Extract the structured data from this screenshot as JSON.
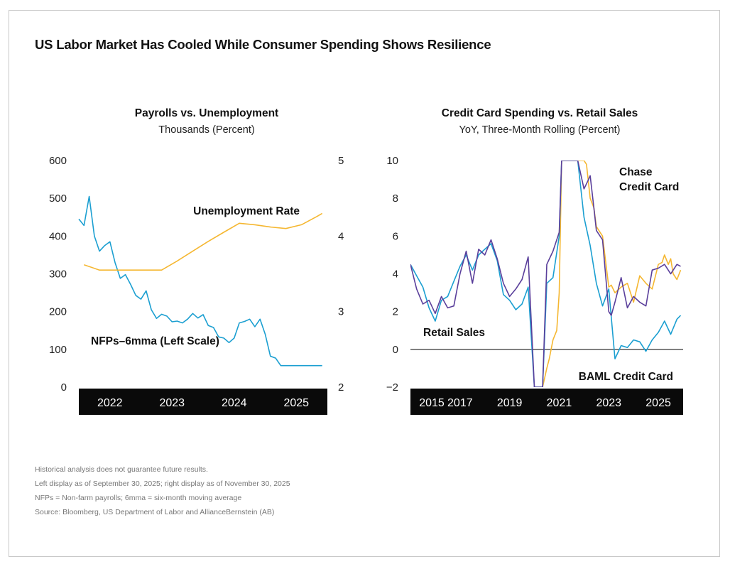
{
  "title": "US Labor Market Has Cooled While Consumer Spending Shows Resilience",
  "left_panel": {
    "title": "Payrolls vs. Unemployment",
    "subtitle": "Thousands (Percent)"
  },
  "right_panel": {
    "title": "Credit Card Spending vs. Retail Sales",
    "subtitle": "YoY, Three-Month Rolling (Percent)"
  },
  "colors": {
    "nfp": "#1b9fd1",
    "unemployment": "#f5b731",
    "retail": "#1b9fd1",
    "chase": "#5a3f9b",
    "baml": "#f5b731",
    "axis_band": "#0a0a0a"
  },
  "footnotes": [
    "Historical analysis does not guarantee future results.",
    "Left display as of September 30, 2025; right display as of November 30, 2025",
    "NFPs = Non-farm payrolls; 6mma = six-month moving average",
    "Source: Bloomberg, US Department of Labor and AllianceBernstein (AB)"
  ],
  "chart_data": [
    {
      "type": "line",
      "title": "Payrolls vs. Unemployment",
      "subtitle": "Thousands (Percent)",
      "x_range": [
        2021.75,
        2025.75
      ],
      "x_ticks": [
        {
          "value": 2022.25,
          "label": "2022"
        },
        {
          "value": 2023.25,
          "label": "2023"
        },
        {
          "value": 2024.25,
          "label": "2024"
        },
        {
          "value": 2025.25,
          "label": "2025"
        }
      ],
      "y_left": {
        "range": [
          0,
          600
        ],
        "ticks": [
          "0",
          "100",
          "200",
          "300",
          "400",
          "500",
          "600"
        ]
      },
      "y_right": {
        "range": [
          2,
          5
        ],
        "ticks": [
          "2",
          "3",
          "4",
          "5"
        ]
      },
      "series": [
        {
          "name": "NFPs–6mma (Left Scale)",
          "axis": "left",
          "color_key": "nfp",
          "x": [
            2021.75,
            2021.833,
            2021.917,
            2022.0,
            2022.083,
            2022.167,
            2022.25,
            2022.333,
            2022.417,
            2022.5,
            2022.583,
            2022.667,
            2022.75,
            2022.833,
            2022.917,
            2023.0,
            2023.083,
            2023.167,
            2023.25,
            2023.333,
            2023.417,
            2023.5,
            2023.583,
            2023.667,
            2023.75,
            2023.833,
            2023.917,
            2024.0,
            2024.083,
            2024.167,
            2024.25,
            2024.333,
            2024.417,
            2024.5,
            2024.583,
            2024.667,
            2024.75,
            2024.833,
            2024.917,
            2025.0,
            2025.083,
            2025.167,
            2025.25,
            2025.333,
            2025.417,
            2025.5,
            2025.583,
            2025.667
          ],
          "values": [
            445,
            428,
            505,
            400,
            360,
            375,
            385,
            330,
            288,
            298,
            272,
            243,
            233,
            255,
            205,
            182,
            193,
            188,
            173,
            175,
            170,
            180,
            195,
            183,
            192,
            163,
            158,
            133,
            130,
            118,
            130,
            170,
            174,
            180,
            160,
            180,
            140,
            82,
            77,
            57,
            57,
            57,
            57,
            57,
            57,
            57,
            57,
            57
          ]
        },
        {
          "name": "Unemployment Rate",
          "axis": "right",
          "color_key": "unemployment",
          "x": [
            2021.833,
            2022.083,
            2022.333,
            2022.583,
            2022.833,
            2023.083,
            2023.333,
            2023.583,
            2023.833,
            2024.083,
            2024.333,
            2024.583,
            2024.833,
            2025.083,
            2025.333,
            2025.583,
            2025.667
          ],
          "values": [
            3.62,
            3.55,
            3.55,
            3.55,
            3.55,
            3.55,
            3.67,
            3.8,
            3.93,
            4.05,
            4.17,
            4.15,
            4.12,
            4.1,
            4.15,
            4.26,
            4.3
          ]
        }
      ],
      "annotations": [
        "Unemployment Rate",
        "NFPs–6mma (Left Scale)"
      ]
    },
    {
      "type": "line",
      "title": "Credit Card Spending vs. Retail Sales",
      "subtitle": "YoY, Three-Month Rolling (Percent)",
      "x_range": [
        2015.0,
        2026.0
      ],
      "x_ticks": [
        {
          "value": 2015.0,
          "label": "2015"
        },
        {
          "value": 2017.0,
          "label": "2017"
        },
        {
          "value": 2019.0,
          "label": "2019"
        },
        {
          "value": 2021.0,
          "label": "2021"
        },
        {
          "value": 2023.0,
          "label": "2023"
        },
        {
          "value": 2025.0,
          "label": "2025"
        }
      ],
      "y": {
        "range": [
          -2,
          10
        ],
        "ticks": [
          "−2",
          "0",
          "2",
          "4",
          "6",
          "8",
          "10"
        ]
      },
      "series": [
        {
          "name": "Retail Sales",
          "color_key": "retail",
          "x": [
            2015.0,
            2015.25,
            2015.5,
            2015.75,
            2016.0,
            2016.25,
            2016.5,
            2016.75,
            2017.0,
            2017.25,
            2017.5,
            2017.75,
            2018.0,
            2018.25,
            2018.5,
            2018.75,
            2019.0,
            2019.25,
            2019.5,
            2019.75,
            2020.0,
            2020.17,
            2020.33,
            2020.5,
            2020.75,
            2021.0,
            2021.1,
            2021.25,
            2021.5,
            2021.75,
            2022.0,
            2022.25,
            2022.5,
            2022.75,
            2023.0,
            2023.25,
            2023.5,
            2023.75,
            2024.0,
            2024.25,
            2024.5,
            2024.75,
            2025.0,
            2025.25,
            2025.5,
            2025.75,
            2025.9
          ],
          "values": [
            4.5,
            3.9,
            3.3,
            2.2,
            1.5,
            2.6,
            2.8,
            3.6,
            4.4,
            5.0,
            4.2,
            5.0,
            5.3,
            5.6,
            4.7,
            2.9,
            2.6,
            2.1,
            2.4,
            3.3,
            -2.0,
            -2.0,
            -2.0,
            3.5,
            3.8,
            6.0,
            10.0,
            10.0,
            10.0,
            10.0,
            7.0,
            5.5,
            3.5,
            2.3,
            3.2,
            -0.5,
            0.2,
            0.1,
            0.5,
            0.4,
            -0.1,
            0.5,
            0.9,
            1.5,
            0.8,
            1.6,
            1.8
          ]
        },
        {
          "name": "Chase Credit Card",
          "color_key": "chase",
          "x": [
            2015.0,
            2015.25,
            2015.5,
            2015.75,
            2016.0,
            2016.25,
            2016.5,
            2016.75,
            2017.0,
            2017.25,
            2017.5,
            2017.75,
            2018.0,
            2018.25,
            2018.5,
            2018.75,
            2019.0,
            2019.25,
            2019.5,
            2019.75,
            2020.0,
            2020.17,
            2020.33,
            2020.5,
            2020.75,
            2021.0,
            2021.1,
            2021.25,
            2021.5,
            2021.75,
            2022.0,
            2022.15,
            2022.25,
            2022.4,
            2022.5,
            2022.75,
            2023.0,
            2023.1,
            2023.25,
            2023.5,
            2023.75,
            2024.0,
            2024.25,
            2024.5,
            2024.75,
            2025.0,
            2025.25,
            2025.5,
            2025.75,
            2025.9
          ],
          "values": [
            4.5,
            3.2,
            2.4,
            2.6,
            1.9,
            2.8,
            2.2,
            2.3,
            4.0,
            5.2,
            3.5,
            5.3,
            5.0,
            5.8,
            4.8,
            3.5,
            2.8,
            3.2,
            3.7,
            4.9,
            -2.0,
            -2.0,
            -2.0,
            4.5,
            5.2,
            6.2,
            10.0,
            10.0,
            10.0,
            10.0,
            8.5,
            8.9,
            9.2,
            7.5,
            6.3,
            5.8,
            2.0,
            1.8,
            2.5,
            3.8,
            2.2,
            2.8,
            2.5,
            2.3,
            4.2,
            4.3,
            4.5,
            4.0,
            4.5,
            4.4
          ]
        },
        {
          "name": "BAML Credit Card",
          "color_key": "baml",
          "x": [
            2020.33,
            2020.5,
            2020.6,
            2020.75,
            2020.9,
            2021.0,
            2021.1,
            2021.25,
            2021.5,
            2021.75,
            2022.0,
            2022.1,
            2022.25,
            2022.4,
            2022.5,
            2022.75,
            2023.0,
            2023.1,
            2023.25,
            2023.5,
            2023.75,
            2024.0,
            2024.25,
            2024.5,
            2024.75,
            2025.0,
            2025.15,
            2025.25,
            2025.4,
            2025.5,
            2025.6,
            2025.75,
            2025.9
          ],
          "values": [
            -2.0,
            -1.0,
            -0.5,
            0.5,
            1.0,
            3.0,
            10.0,
            10.0,
            10.0,
            10.0,
            10.0,
            9.8,
            8.0,
            7.5,
            6.5,
            6.0,
            3.3,
            3.4,
            3.0,
            3.3,
            3.5,
            2.5,
            3.9,
            3.5,
            3.2,
            4.5,
            4.6,
            5.0,
            4.5,
            4.8,
            4.0,
            3.7,
            4.2
          ]
        }
      ],
      "annotations": [
        "Chase",
        "Credit Card",
        "Retail Sales",
        "BAML Credit Card"
      ]
    }
  ]
}
